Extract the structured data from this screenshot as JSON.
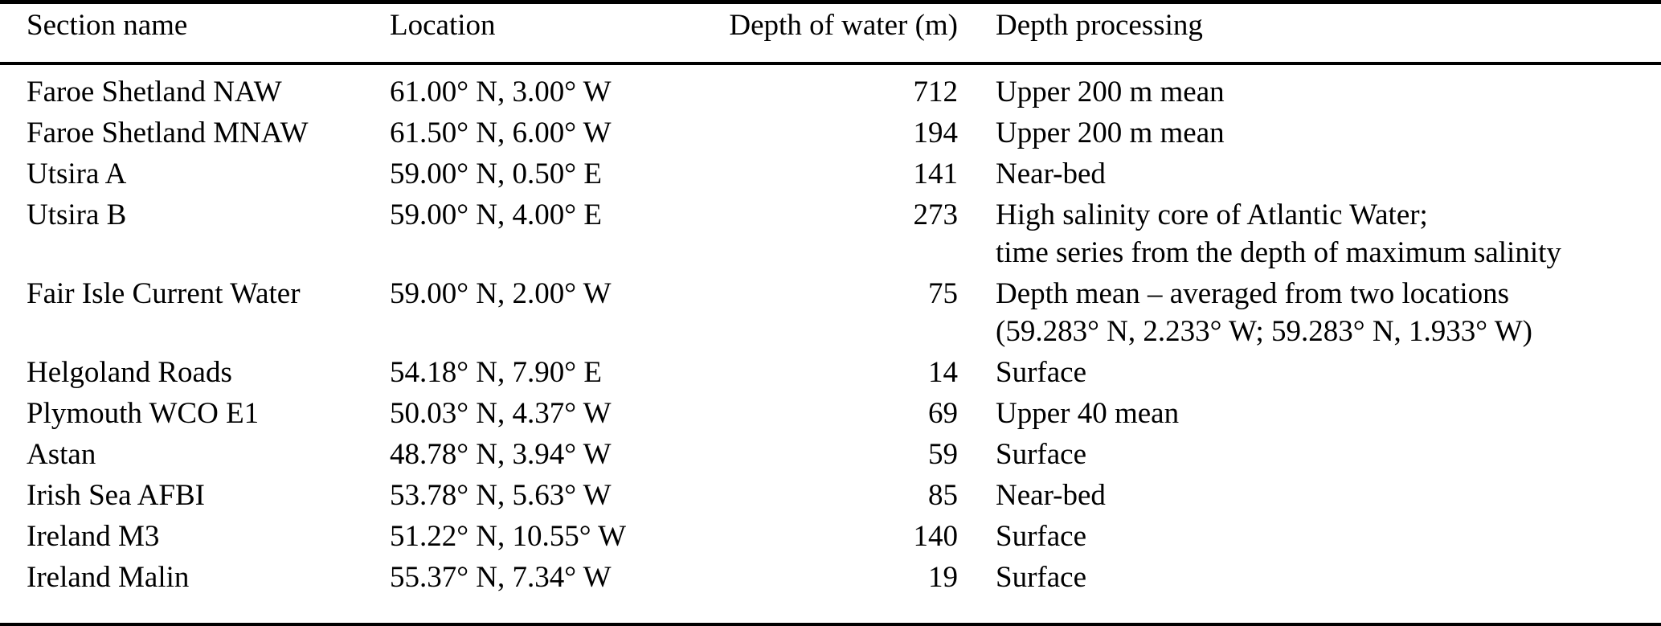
{
  "table": {
    "columns": [
      "Section name",
      "Location",
      "Depth of water (m)",
      "Depth processing"
    ],
    "rows": [
      {
        "section": "Faroe Shetland NAW",
        "location": "61.00° N, 3.00° W",
        "depth": "712",
        "processing": [
          "Upper 200 m mean"
        ]
      },
      {
        "section": "Faroe Shetland MNAW",
        "location": "61.50° N, 6.00° W",
        "depth": "194",
        "processing": [
          "Upper 200 m mean"
        ]
      },
      {
        "section": "Utsira A",
        "location": "59.00° N, 0.50° E",
        "depth": "141",
        "processing": [
          "Near-bed"
        ]
      },
      {
        "section": "Utsira B",
        "location": "59.00° N, 4.00° E",
        "depth": "273",
        "processing": [
          "High salinity core of Atlantic Water;",
          "time series from the depth of maximum salinity"
        ]
      },
      {
        "section": "Fair Isle Current Water",
        "location": "59.00° N, 2.00° W",
        "depth": "75",
        "processing": [
          "Depth mean – averaged from two locations",
          "(59.283° N, 2.233° W; 59.283° N, 1.933° W)"
        ]
      },
      {
        "section": "Helgoland Roads",
        "location": "54.18° N, 7.90° E",
        "depth": "14",
        "processing": [
          "Surface"
        ]
      },
      {
        "section": "Plymouth WCO E1",
        "location": "50.03° N, 4.37° W",
        "depth": "69",
        "processing": [
          "Upper 40 mean"
        ]
      },
      {
        "section": "Astan",
        "location": "48.78° N, 3.94° W",
        "depth": "59",
        "processing": [
          "Surface"
        ]
      },
      {
        "section": "Irish Sea AFBI",
        "location": "53.78° N, 5.63° W",
        "depth": "85",
        "processing": [
          "Near-bed"
        ]
      },
      {
        "section": "Ireland M3",
        "location": "51.22° N, 10.55° W",
        "depth": "140",
        "processing": [
          "Surface"
        ]
      },
      {
        "section": "Ireland Malin",
        "location": "55.37° N, 7.34° W",
        "depth": "19",
        "processing": [
          "Surface"
        ]
      }
    ]
  }
}
